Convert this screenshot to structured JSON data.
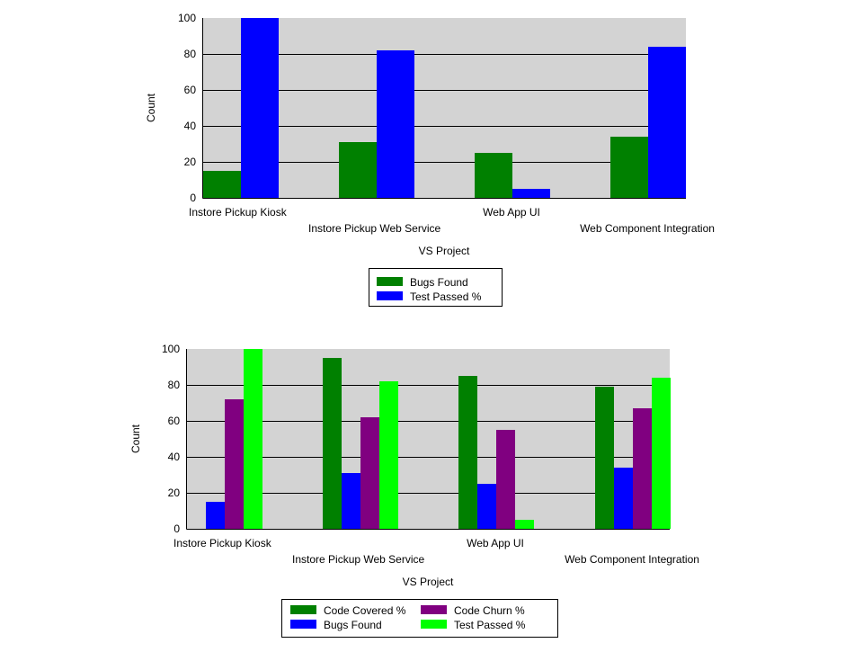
{
  "chart_data": [
    {
      "type": "bar",
      "xlabel": "VS Project",
      "ylabel": "Count",
      "ylim": [
        0,
        100
      ],
      "yticks": [
        0,
        20,
        40,
        60,
        80,
        100
      ],
      "grid": true,
      "legend_position": "bottom",
      "plot_background": "#d3d3d3",
      "categories": [
        "Instore Pickup Kiosk",
        "Instore Pickup Web Service",
        "Web App UI",
        "Web Component Integration"
      ],
      "series": [
        {
          "name": "Bugs Found",
          "color": "#008000",
          "values": [
            15,
            31,
            25,
            34
          ]
        },
        {
          "name": "Test Passed %",
          "color": "#0000ff",
          "values": [
            100,
            82,
            5,
            84
          ]
        }
      ]
    },
    {
      "type": "bar",
      "xlabel": "VS Project",
      "ylabel": "Count",
      "ylim": [
        0,
        100
      ],
      "yticks": [
        0,
        20,
        40,
        60,
        80,
        100
      ],
      "grid": true,
      "legend_position": "bottom",
      "plot_background": "#d3d3d3",
      "categories": [
        "Instore Pickup Kiosk",
        "Instore Pickup Web Service",
        "Web App UI",
        "Web Component Integration"
      ],
      "series": [
        {
          "name": "Code Covered %",
          "color": "#008000",
          "values": [
            0,
            95,
            85,
            79
          ]
        },
        {
          "name": "Bugs Found",
          "color": "#0000ff",
          "values": [
            15,
            31,
            25,
            34
          ]
        },
        {
          "name": "Code Churn %",
          "color": "#800080",
          "values": [
            72,
            62,
            55,
            67
          ]
        },
        {
          "name": "Test Passed %",
          "color": "#00ff00",
          "values": [
            100,
            82,
            5,
            84
          ]
        }
      ]
    }
  ]
}
